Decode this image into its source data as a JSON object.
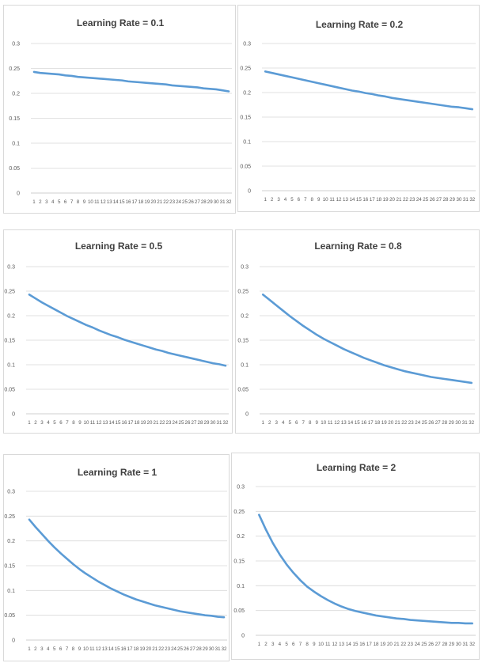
{
  "chart_data": [
    {
      "type": "line",
      "title": "Learning Rate = 0.1",
      "x": [
        1,
        2,
        3,
        4,
        5,
        6,
        7,
        8,
        9,
        10,
        11,
        12,
        13,
        14,
        15,
        16,
        17,
        18,
        19,
        20,
        21,
        22,
        23,
        24,
        25,
        26,
        27,
        28,
        29,
        30,
        31,
        32
      ],
      "yticks": [
        "0",
        "0.05",
        "0.1",
        "0.15",
        "0.2",
        "0.25",
        "0.3"
      ],
      "ylim": [
        0,
        0.3
      ],
      "grid": true,
      "series": [
        {
          "values": [
            0.243,
            0.241,
            0.24,
            0.239,
            0.238,
            0.236,
            0.235,
            0.233,
            0.232,
            0.231,
            0.23,
            0.229,
            0.228,
            0.227,
            0.226,
            0.224,
            0.223,
            0.222,
            0.221,
            0.22,
            0.219,
            0.218,
            0.216,
            0.215,
            0.214,
            0.213,
            0.212,
            0.21,
            0.209,
            0.208,
            0.206,
            0.204
          ]
        }
      ]
    },
    {
      "type": "line",
      "title": "Learning Rate = 0.2",
      "x": [
        1,
        2,
        3,
        4,
        5,
        6,
        7,
        8,
        9,
        10,
        11,
        12,
        13,
        14,
        15,
        16,
        17,
        18,
        19,
        20,
        21,
        22,
        23,
        24,
        25,
        26,
        27,
        28,
        29,
        30,
        31,
        32
      ],
      "yticks": [
        "0",
        "0.05",
        "0.1",
        "0.15",
        "0.2",
        "0.25",
        "0.3"
      ],
      "ylim": [
        0,
        0.3
      ],
      "grid": true,
      "series": [
        {
          "values": [
            0.243,
            0.24,
            0.237,
            0.234,
            0.231,
            0.228,
            0.225,
            0.222,
            0.219,
            0.216,
            0.213,
            0.21,
            0.207,
            0.204,
            0.202,
            0.199,
            0.197,
            0.194,
            0.192,
            0.189,
            0.187,
            0.185,
            0.183,
            0.181,
            0.179,
            0.177,
            0.175,
            0.173,
            0.171,
            0.17,
            0.168,
            0.166
          ]
        }
      ]
    },
    {
      "type": "line",
      "title": "Learning Rate = 0.5",
      "x": [
        1,
        2,
        3,
        4,
        5,
        6,
        7,
        8,
        9,
        10,
        11,
        12,
        13,
        14,
        15,
        16,
        17,
        18,
        19,
        20,
        21,
        22,
        23,
        24,
        25,
        26,
        27,
        28,
        29,
        30,
        31,
        32
      ],
      "yticks": [
        "0",
        "0.05",
        "0.1",
        "0.15",
        "0.2",
        "0.25",
        "0.3"
      ],
      "ylim": [
        0,
        0.3
      ],
      "grid": true,
      "series": [
        {
          "values": [
            0.243,
            0.235,
            0.227,
            0.22,
            0.213,
            0.206,
            0.199,
            0.193,
            0.187,
            0.181,
            0.176,
            0.17,
            0.165,
            0.16,
            0.156,
            0.151,
            0.147,
            0.143,
            0.139,
            0.135,
            0.131,
            0.128,
            0.124,
            0.121,
            0.118,
            0.115,
            0.112,
            0.109,
            0.106,
            0.103,
            0.101,
            0.098
          ]
        }
      ]
    },
    {
      "type": "line",
      "title": "Learning Rate = 0.8",
      "x": [
        1,
        2,
        3,
        4,
        5,
        6,
        7,
        8,
        9,
        10,
        11,
        12,
        13,
        14,
        15,
        16,
        17,
        18,
        19,
        20,
        21,
        22,
        23,
        24,
        25,
        26,
        27,
        28,
        29,
        30,
        31,
        32
      ],
      "yticks": [
        "0",
        "0.05",
        "0.1",
        "0.15",
        "0.2",
        "0.25",
        "0.3"
      ],
      "ylim": [
        0,
        0.3
      ],
      "grid": true,
      "series": [
        {
          "values": [
            0.243,
            0.232,
            0.221,
            0.21,
            0.199,
            0.189,
            0.179,
            0.17,
            0.161,
            0.153,
            0.146,
            0.139,
            0.132,
            0.126,
            0.12,
            0.114,
            0.109,
            0.104,
            0.099,
            0.095,
            0.091,
            0.087,
            0.084,
            0.081,
            0.078,
            0.075,
            0.073,
            0.071,
            0.069,
            0.067,
            0.065,
            0.063
          ]
        }
      ]
    },
    {
      "type": "line",
      "title": "Learning Rate = 1",
      "x": [
        1,
        2,
        3,
        4,
        5,
        6,
        7,
        8,
        9,
        10,
        11,
        12,
        13,
        14,
        15,
        16,
        17,
        18,
        19,
        20,
        21,
        22,
        23,
        24,
        25,
        26,
        27,
        28,
        29,
        30,
        31,
        32
      ],
      "yticks": [
        "0",
        "0.05",
        "0.1",
        "0.15",
        "0.2",
        "0.25",
        "0.3"
      ],
      "ylim": [
        0,
        0.3
      ],
      "grid": true,
      "series": [
        {
          "values": [
            0.243,
            0.228,
            0.214,
            0.2,
            0.187,
            0.175,
            0.164,
            0.153,
            0.143,
            0.134,
            0.126,
            0.118,
            0.111,
            0.104,
            0.098,
            0.092,
            0.087,
            0.082,
            0.078,
            0.074,
            0.07,
            0.067,
            0.064,
            0.061,
            0.058,
            0.056,
            0.054,
            0.052,
            0.05,
            0.049,
            0.047,
            0.046
          ]
        }
      ]
    },
    {
      "type": "line",
      "title": "Learning Rate = 2",
      "x": [
        1,
        2,
        3,
        4,
        5,
        6,
        7,
        8,
        9,
        10,
        11,
        12,
        13,
        14,
        15,
        16,
        17,
        18,
        19,
        20,
        21,
        22,
        23,
        24,
        25,
        26,
        27,
        28,
        29,
        30,
        31,
        32
      ],
      "yticks": [
        "0",
        "0.05",
        "0.1",
        "0.15",
        "0.2",
        "0.25",
        "0.3"
      ],
      "ylim": [
        0,
        0.3
      ],
      "grid": true,
      "series": [
        {
          "values": [
            0.243,
            0.213,
            0.186,
            0.163,
            0.143,
            0.126,
            0.111,
            0.098,
            0.088,
            0.079,
            0.071,
            0.064,
            0.058,
            0.053,
            0.049,
            0.046,
            0.043,
            0.04,
            0.038,
            0.036,
            0.034,
            0.033,
            0.031,
            0.03,
            0.029,
            0.028,
            0.027,
            0.026,
            0.025,
            0.025,
            0.024,
            0.024
          ]
        }
      ]
    }
  ],
  "colors": {
    "line": "#5b9bd5",
    "grid": "#d9d9d9",
    "axis": "#bfbfbf",
    "text": "#595959",
    "title": "#404040"
  }
}
